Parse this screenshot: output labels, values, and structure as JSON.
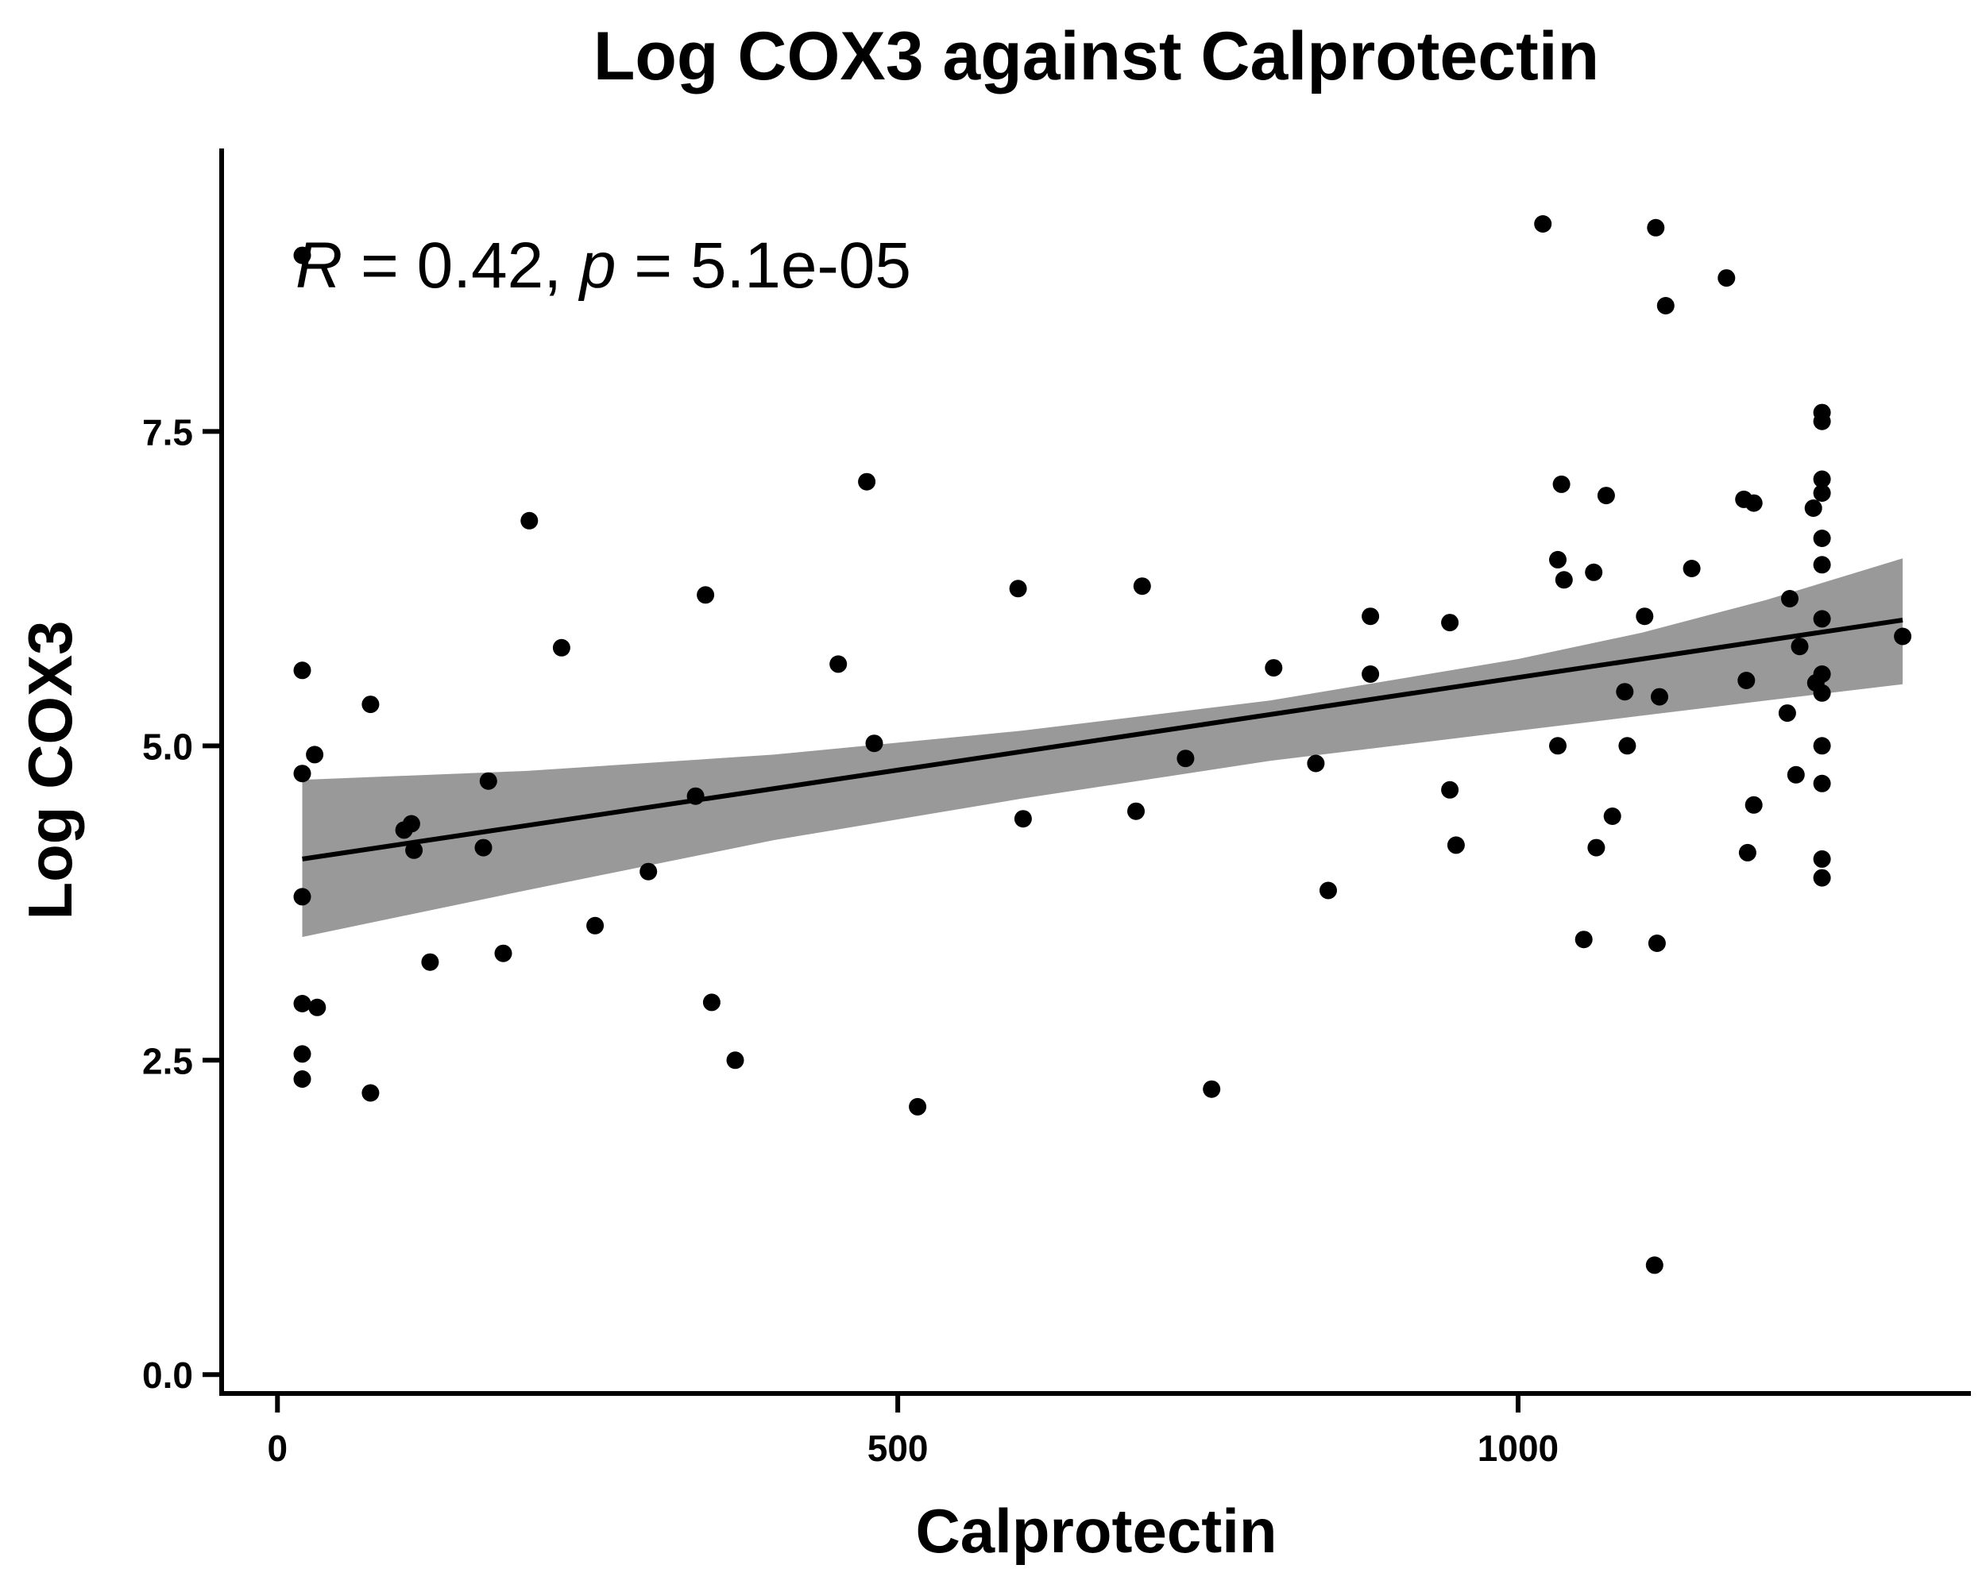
{
  "chart_data": {
    "type": "scatter",
    "title": "Log COX3 against Calprotectin",
    "xlabel": "Calprotectin",
    "ylabel": "Log COX3",
    "xlim": [
      -45,
      1365
    ],
    "ylim": [
      -0.15,
      9.75
    ],
    "x_ticks": [
      {
        "value": 0,
        "label": "0"
      },
      {
        "value": 500,
        "label": "500"
      },
      {
        "value": 1000,
        "label": "1000"
      }
    ],
    "y_ticks": [
      {
        "value": 0,
        "label": "0.0"
      },
      {
        "value": 2.5,
        "label": "2.5"
      },
      {
        "value": 5,
        "label": "5.0"
      },
      {
        "value": 7.5,
        "label": "7.5"
      }
    ],
    "grid": false,
    "legend": "none",
    "annotation": {
      "r_symbol": "R",
      "r_text": " = 0.42, ",
      "p_symbol": "p",
      "p_text": " = 5.1e-05"
    },
    "regression": {
      "x_start": 20,
      "x_end": 1310,
      "y_start": 4.1,
      "y_end": 6.0,
      "band": [
        {
          "x": 20,
          "lo": 3.48,
          "hi": 4.73
        },
        {
          "x": 200,
          "lo": 3.85,
          "hi": 4.8
        },
        {
          "x": 400,
          "lo": 4.25,
          "hi": 4.93
        },
        {
          "x": 600,
          "lo": 4.58,
          "hi": 5.12
        },
        {
          "x": 800,
          "lo": 4.88,
          "hi": 5.36
        },
        {
          "x": 1000,
          "lo": 5.12,
          "hi": 5.69
        },
        {
          "x": 1100,
          "lo": 5.24,
          "hi": 5.9
        },
        {
          "x": 1200,
          "lo": 5.36,
          "hi": 6.16
        },
        {
          "x": 1310,
          "lo": 5.49,
          "hi": 6.49
        }
      ]
    },
    "points": [
      {
        "x": 20,
        "y": 8.9
      },
      {
        "x": 20,
        "y": 5.6
      },
      {
        "x": 20,
        "y": 4.78
      },
      {
        "x": 20,
        "y": 3.8
      },
      {
        "x": 20,
        "y": 2.95
      },
      {
        "x": 20,
        "y": 2.55
      },
      {
        "x": 20,
        "y": 2.35
      },
      {
        "x": 30,
        "y": 4.93
      },
      {
        "x": 32,
        "y": 2.92
      },
      {
        "x": 75,
        "y": 5.33
      },
      {
        "x": 75,
        "y": 2.24
      },
      {
        "x": 102,
        "y": 4.33
      },
      {
        "x": 108,
        "y": 4.38
      },
      {
        "x": 110,
        "y": 4.17
      },
      {
        "x": 123,
        "y": 3.28
      },
      {
        "x": 166,
        "y": 4.19
      },
      {
        "x": 170,
        "y": 4.72
      },
      {
        "x": 182,
        "y": 3.35
      },
      {
        "x": 203,
        "y": 6.79
      },
      {
        "x": 229,
        "y": 5.78
      },
      {
        "x": 256,
        "y": 3.57
      },
      {
        "x": 299,
        "y": 4.0
      },
      {
        "x": 337,
        "y": 4.6
      },
      {
        "x": 345,
        "y": 6.2
      },
      {
        "x": 350,
        "y": 2.96
      },
      {
        "x": 369,
        "y": 2.5
      },
      {
        "x": 452,
        "y": 5.65
      },
      {
        "x": 475,
        "y": 7.1
      },
      {
        "x": 481,
        "y": 5.02
      },
      {
        "x": 516,
        "y": 2.13
      },
      {
        "x": 597,
        "y": 6.25
      },
      {
        "x": 601,
        "y": 4.42
      },
      {
        "x": 692,
        "y": 4.48
      },
      {
        "x": 697,
        "y": 6.27
      },
      {
        "x": 732,
        "y": 4.9
      },
      {
        "x": 753,
        "y": 2.27
      },
      {
        "x": 803,
        "y": 5.62
      },
      {
        "x": 837,
        "y": 4.86
      },
      {
        "x": 847,
        "y": 3.85
      },
      {
        "x": 881,
        "y": 5.57
      },
      {
        "x": 881,
        "y": 6.03
      },
      {
        "x": 945,
        "y": 5.98
      },
      {
        "x": 945,
        "y": 4.65
      },
      {
        "x": 950,
        "y": 4.21
      },
      {
        "x": 1020,
        "y": 9.15
      },
      {
        "x": 1032,
        "y": 6.48
      },
      {
        "x": 1032,
        "y": 5.0
      },
      {
        "x": 1035,
        "y": 7.08
      },
      {
        "x": 1037,
        "y": 6.32
      },
      {
        "x": 1053,
        "y": 3.46
      },
      {
        "x": 1061,
        "y": 6.38
      },
      {
        "x": 1063,
        "y": 4.19
      },
      {
        "x": 1071,
        "y": 6.99
      },
      {
        "x": 1076,
        "y": 4.44
      },
      {
        "x": 1086,
        "y": 5.43
      },
      {
        "x": 1088,
        "y": 5.0
      },
      {
        "x": 1102,
        "y": 6.03
      },
      {
        "x": 1110,
        "y": 0.87
      },
      {
        "x": 1111,
        "y": 9.12
      },
      {
        "x": 1112,
        "y": 3.43
      },
      {
        "x": 1114,
        "y": 5.39
      },
      {
        "x": 1119,
        "y": 8.5
      },
      {
        "x": 1140,
        "y": 6.41
      },
      {
        "x": 1168,
        "y": 8.72
      },
      {
        "x": 1182,
        "y": 6.96
      },
      {
        "x": 1184,
        "y": 5.52
      },
      {
        "x": 1185,
        "y": 4.15
      },
      {
        "x": 1190,
        "y": 4.53
      },
      {
        "x": 1190,
        "y": 6.93
      },
      {
        "x": 1217,
        "y": 5.26
      },
      {
        "x": 1219,
        "y": 6.17
      },
      {
        "x": 1224,
        "y": 4.77
      },
      {
        "x": 1227,
        "y": 5.79
      },
      {
        "x": 1238,
        "y": 6.89
      },
      {
        "x": 1240,
        "y": 5.5
      },
      {
        "x": 1245,
        "y": 7.65
      },
      {
        "x": 1245,
        "y": 7.58
      },
      {
        "x": 1245,
        "y": 7.12
      },
      {
        "x": 1245,
        "y": 7.01
      },
      {
        "x": 1245,
        "y": 6.65
      },
      {
        "x": 1245,
        "y": 6.44
      },
      {
        "x": 1245,
        "y": 6.01
      },
      {
        "x": 1245,
        "y": 5.57
      },
      {
        "x": 1245,
        "y": 5.42
      },
      {
        "x": 1245,
        "y": 5.0
      },
      {
        "x": 1245,
        "y": 4.7
      },
      {
        "x": 1245,
        "y": 4.1
      },
      {
        "x": 1245,
        "y": 3.95
      },
      {
        "x": 1310,
        "y": 5.87
      }
    ]
  }
}
